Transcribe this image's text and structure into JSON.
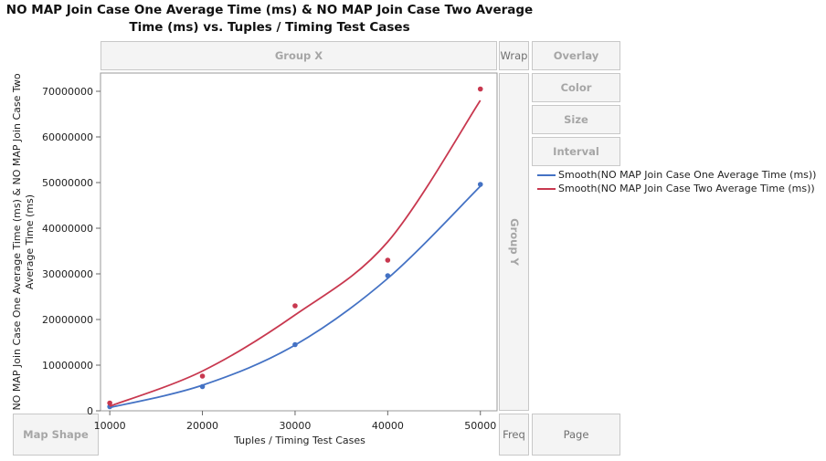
{
  "title": "NO MAP Join Case One Average Time (ms)  & NO MAP Join Case Two Average Time (ms) vs. Tuples / Timing Test Cases",
  "zones": {
    "group_x": "Group X",
    "wrap": "Wrap",
    "overlay": "Overlay",
    "color": "Color",
    "size": "Size",
    "interval": "Interval",
    "group_y": "Group Y",
    "map_shape": "Map Shape",
    "freq": "Freq",
    "page": "Page"
  },
  "chart_data": {
    "type": "scatter",
    "xlabel": "Tuples / Timing Test Cases",
    "ylabel": "NO MAP Join Case One Average Time (ms) & NO MAP Join Case Two Average Time (ms)",
    "xlim": [
      9000,
      51800
    ],
    "ylim": [
      0,
      74000000
    ],
    "x_ticks": [
      10000,
      20000,
      30000,
      40000,
      50000
    ],
    "y_ticks": [
      0,
      10000000,
      20000000,
      30000000,
      40000000,
      50000000,
      60000000,
      70000000
    ],
    "x": [
      10000,
      20000,
      30000,
      40000,
      50000
    ],
    "series": [
      {
        "name": "Smooth(NO MAP Join Case One Average Time (ms))",
        "color": "#4472c4",
        "values": [
          900000,
          5300000,
          14500000,
          29600000,
          49600000
        ],
        "smooth": [
          700000,
          5600000,
          14400000,
          29000000,
          49200000
        ]
      },
      {
        "name": "Smooth(NO MAP Join Case Two Average Time (ms))",
        "color": "#c8384f",
        "values": [
          1700000,
          7600000,
          23000000,
          33000000,
          70500000
        ],
        "smooth": [
          1000000,
          8700000,
          21000000,
          37000000,
          68000000
        ]
      }
    ],
    "legend_position": "right",
    "grid": false
  }
}
